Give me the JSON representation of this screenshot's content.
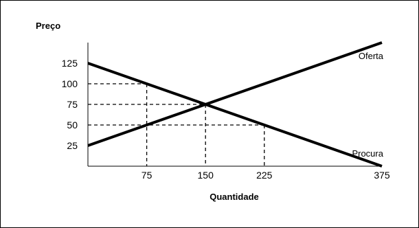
{
  "chart_data": {
    "type": "line",
    "ylabel": "Preço",
    "xlabel": "Quantidade",
    "x_ticks": [
      75,
      150,
      225,
      375
    ],
    "y_ticks": [
      25,
      50,
      75,
      100,
      125
    ],
    "xlim": [
      0,
      375
    ],
    "ylim": [
      0,
      125
    ],
    "series": [
      {
        "name": "Oferta",
        "points": [
          [
            0,
            25
          ],
          [
            375,
            150
          ]
        ]
      },
      {
        "name": "Procura",
        "points": [
          [
            0,
            125
          ],
          [
            375,
            0
          ]
        ]
      }
    ],
    "reference_points": [
      {
        "x": 75,
        "y": 100
      },
      {
        "x": 150,
        "y": 75
      },
      {
        "x": 225,
        "y": 50
      }
    ],
    "grid": false
  }
}
